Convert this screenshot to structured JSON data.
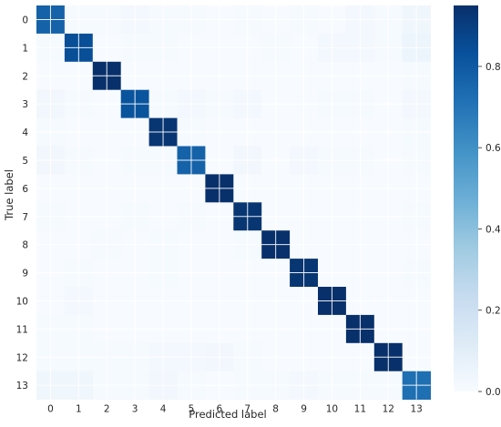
{
  "chart_data": {
    "type": "heatmap",
    "title": "",
    "xlabel": "Predicted label",
    "ylabel": "True label",
    "x_categories": [
      "0",
      "1",
      "2",
      "3",
      "4",
      "5",
      "6",
      "7",
      "8",
      "9",
      "10",
      "11",
      "12",
      "13"
    ],
    "y_categories": [
      "0",
      "1",
      "2",
      "3",
      "4",
      "5",
      "6",
      "7",
      "8",
      "9",
      "10",
      "11",
      "12",
      "13"
    ],
    "colormap": "Blues",
    "grid": true,
    "colorbar": {
      "range": [
        0.0,
        0.95
      ],
      "ticks": [
        "0.0",
        "0.2",
        "0.4",
        "0.6",
        "0.8"
      ],
      "tick_values": [
        0.0,
        0.2,
        0.4,
        0.6,
        0.8
      ]
    },
    "matrix": [
      [
        0.77,
        0.01,
        0.01,
        0.02,
        0.01,
        0.01,
        0.0,
        0.01,
        0.0,
        0.01,
        0.0,
        0.02,
        0.01,
        0.04
      ],
      [
        0.01,
        0.84,
        0.0,
        0.01,
        0.01,
        0.0,
        0.0,
        0.0,
        0.01,
        0.0,
        0.02,
        0.02,
        0.01,
        0.05
      ],
      [
        0.0,
        0.0,
        0.95,
        0.0,
        0.0,
        0.0,
        0.0,
        0.0,
        0.0,
        0.0,
        0.0,
        0.0,
        0.0,
        0.01
      ],
      [
        0.03,
        0.01,
        0.0,
        0.82,
        0.01,
        0.02,
        0.01,
        0.02,
        0.0,
        0.0,
        0.01,
        0.01,
        0.0,
        0.02
      ],
      [
        0.01,
        0.0,
        0.0,
        0.0,
        0.93,
        0.01,
        0.0,
        0.0,
        0.0,
        0.0,
        0.0,
        0.0,
        0.0,
        0.01
      ],
      [
        0.03,
        0.01,
        0.0,
        0.01,
        0.01,
        0.77,
        0.0,
        0.03,
        0.0,
        0.02,
        0.01,
        0.01,
        0.0,
        0.01
      ],
      [
        0.0,
        0.0,
        0.0,
        0.0,
        0.0,
        0.0,
        0.97,
        0.0,
        0.0,
        0.0,
        0.0,
        0.0,
        0.0,
        0.0
      ],
      [
        0.01,
        0.0,
        0.0,
        0.01,
        0.0,
        0.01,
        0.0,
        0.93,
        0.0,
        0.0,
        0.0,
        0.0,
        0.0,
        0.01
      ],
      [
        0.0,
        0.0,
        0.01,
        0.0,
        0.01,
        0.0,
        0.0,
        0.01,
        0.95,
        0.0,
        0.0,
        0.0,
        0.0,
        0.0
      ],
      [
        0.0,
        0.01,
        0.0,
        0.0,
        0.01,
        0.0,
        0.0,
        0.0,
        0.0,
        0.93,
        0.0,
        0.0,
        0.0,
        0.01
      ],
      [
        0.0,
        0.02,
        0.0,
        0.0,
        0.0,
        0.0,
        0.0,
        0.0,
        0.0,
        0.0,
        0.96,
        0.0,
        0.0,
        0.0
      ],
      [
        0.01,
        0.01,
        0.0,
        0.0,
        0.0,
        0.0,
        0.0,
        0.0,
        0.0,
        0.0,
        0.0,
        0.95,
        0.0,
        0.0
      ],
      [
        0.01,
        0.01,
        0.01,
        0.01,
        0.02,
        0.02,
        0.03,
        0.01,
        0.0,
        0.0,
        0.0,
        0.0,
        0.95,
        0.0
      ],
      [
        0.04,
        0.04,
        0.01,
        0.01,
        0.03,
        0.01,
        0.0,
        0.01,
        0.01,
        0.02,
        0.01,
        0.01,
        0.01,
        0.72
      ]
    ]
  }
}
